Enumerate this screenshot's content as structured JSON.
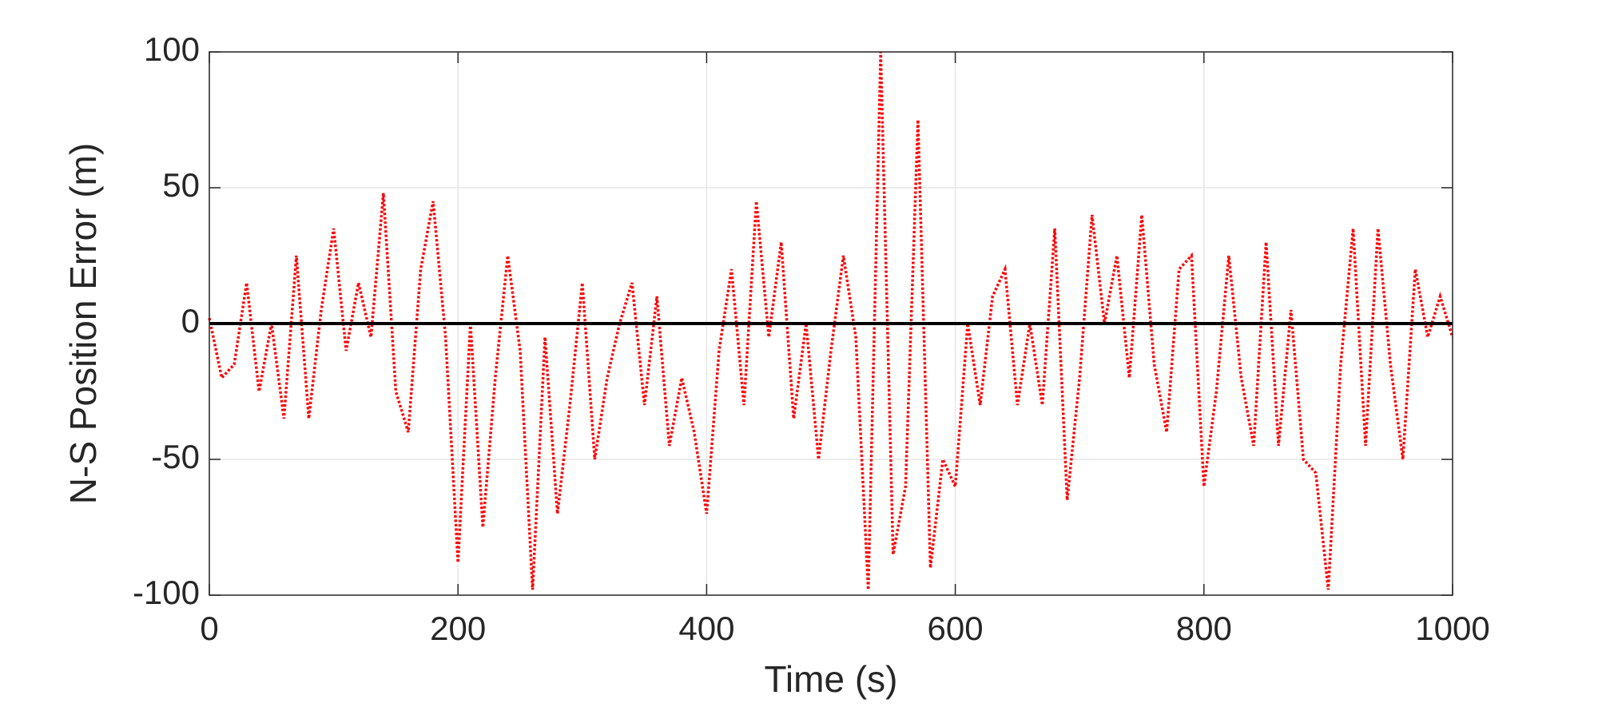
{
  "chart_data": {
    "type": "line",
    "xlabel": "Time (s)",
    "ylabel": "N-S Position Error (m)",
    "xlim": [
      0,
      1000
    ],
    "xticks": [
      0,
      200,
      400,
      600,
      800,
      1000
    ],
    "ylim": [
      -100,
      100
    ],
    "yticks": [
      -100,
      -50,
      0,
      50,
      100
    ],
    "grid": true,
    "series": [
      {
        "color": "#ff0000",
        "style": "dotted",
        "x": [
          0,
          10,
          20,
          30,
          40,
          50,
          60,
          70,
          80,
          90,
          100,
          110,
          120,
          130,
          140,
          150,
          160,
          170,
          180,
          190,
          200,
          210,
          220,
          230,
          240,
          250,
          260,
          270,
          280,
          290,
          300,
          310,
          320,
          330,
          340,
          350,
          360,
          370,
          380,
          390,
          400,
          410,
          420,
          430,
          440,
          450,
          460,
          470,
          480,
          490,
          500,
          510,
          520,
          530,
          540,
          550,
          560,
          570,
          580,
          590,
          600,
          610,
          620,
          630,
          640,
          650,
          660,
          670,
          680,
          690,
          700,
          710,
          720,
          730,
          740,
          750,
          760,
          770,
          780,
          790,
          800,
          810,
          820,
          830,
          840,
          850,
          860,
          870,
          880,
          890,
          900,
          910,
          920,
          930,
          940,
          950,
          960,
          970,
          980,
          990,
          1000
        ],
        "values": [
          2,
          -20,
          -15,
          15,
          -25,
          0,
          -35,
          25,
          -35,
          5,
          35,
          -10,
          15,
          -5,
          48,
          -25,
          -40,
          20,
          45,
          -5,
          -88,
          0,
          -75,
          -20,
          25,
          -10,
          -98,
          -5,
          -70,
          -30,
          15,
          -50,
          -20,
          0,
          15,
          -30,
          10,
          -45,
          -20,
          -40,
          -70,
          -10,
          20,
          -30,
          45,
          -5,
          30,
          -35,
          0,
          -50,
          -10,
          25,
          -5,
          -98,
          100,
          -85,
          -60,
          75,
          -90,
          -50,
          -60,
          0,
          -30,
          10,
          20,
          -30,
          0,
          -30,
          35,
          -65,
          -20,
          40,
          0,
          25,
          -20,
          40,
          -15,
          -40,
          20,
          25,
          -60,
          -25,
          25,
          -20,
          -45,
          30,
          -45,
          5,
          -50,
          -55,
          -98,
          -15,
          35,
          -45,
          35,
          -15,
          -50,
          20,
          -5,
          10,
          -5
        ]
      },
      {
        "color": "#000000",
        "style": "solid",
        "x": [
          0,
          1000
        ],
        "values": [
          0,
          0
        ]
      }
    ]
  }
}
